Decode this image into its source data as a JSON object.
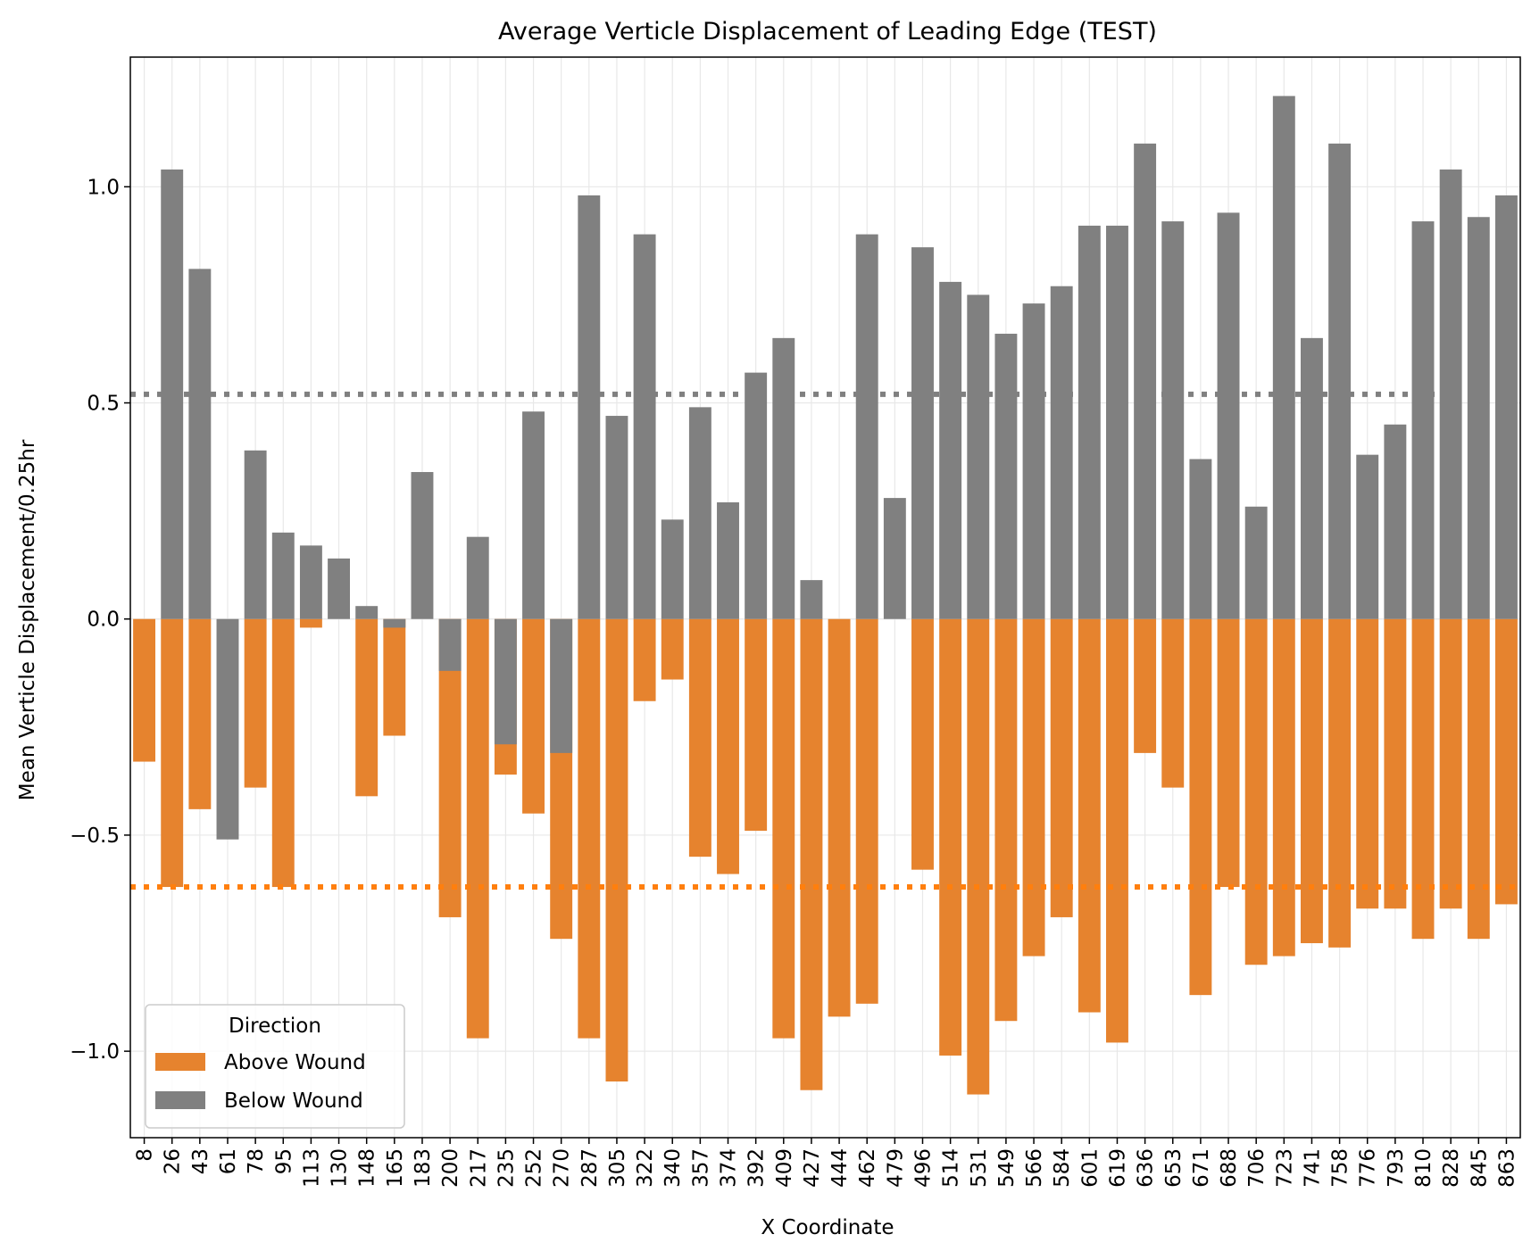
{
  "chart_data": {
    "type": "bar",
    "stacked": "overlay",
    "title": "Average Verticle Displacement of Leading Edge (TEST)",
    "xlabel": "X Coordinate",
    "ylabel": "Mean Verticle Displacement/0.25hr",
    "ylim": [
      -1.2,
      1.3
    ],
    "yticks": [
      -1.0,
      -0.5,
      0.0,
      0.5,
      1.0
    ],
    "ytick_labels": [
      "−1.0",
      "−0.5",
      "0.0",
      "0.5",
      "1.0"
    ],
    "grid": true,
    "legend": {
      "title": "Direction",
      "placement": "lower-left",
      "entries": [
        "Above Wound",
        "Below Wound"
      ]
    },
    "categories": [
      "8",
      "26",
      "43",
      "61",
      "78",
      "95",
      "113",
      "130",
      "148",
      "165",
      "183",
      "200",
      "217",
      "235",
      "252",
      "270",
      "287",
      "305",
      "322",
      "340",
      "357",
      "374",
      "392",
      "409",
      "427",
      "444",
      "462",
      "479",
      "496",
      "514",
      "531",
      "549",
      "566",
      "584",
      "601",
      "619",
      "636",
      "653",
      "671",
      "688",
      "706",
      "723",
      "741",
      "758",
      "776",
      "793",
      "810",
      "828",
      "845",
      "863"
    ],
    "series": [
      {
        "name": "Above Wound",
        "color": "#e6832e",
        "values": [
          -0.33,
          -0.62,
          -0.44,
          0.0,
          -0.39,
          -0.62,
          -0.02,
          0.0,
          -0.41,
          -0.27,
          0.0,
          -0.69,
          -0.97,
          -0.36,
          -0.45,
          -0.74,
          -0.97,
          -1.07,
          -0.19,
          -0.14,
          -0.55,
          -0.59,
          -0.49,
          -0.97,
          -1.09,
          -0.92,
          -0.89,
          0.0,
          -0.58,
          -1.01,
          -1.1,
          -0.93,
          -0.78,
          -0.69,
          -0.91,
          -0.98,
          -0.31,
          -0.39,
          -0.87,
          -0.62,
          -0.8,
          -0.78,
          -0.75,
          -0.76,
          -0.67,
          -0.67,
          -0.74,
          -0.67,
          -0.74,
          -0.66
        ]
      },
      {
        "name": "Below Wound",
        "color": "#808080",
        "values": [
          0.0,
          1.04,
          0.81,
          -0.51,
          0.39,
          0.2,
          0.17,
          0.14,
          0.03,
          -0.02,
          0.34,
          -0.12,
          0.19,
          -0.29,
          0.48,
          -0.31,
          0.98,
          0.47,
          0.89,
          0.23,
          0.49,
          0.27,
          0.57,
          0.65,
          0.09,
          0.0,
          0.89,
          0.28,
          0.86,
          0.78,
          0.75,
          0.66,
          0.73,
          0.77,
          0.91,
          0.91,
          1.1,
          0.92,
          0.37,
          0.94,
          0.26,
          1.21,
          0.65,
          1.1,
          0.38,
          0.45,
          0.92,
          1.04,
          0.93,
          0.98
        ]
      }
    ],
    "reference_lines": [
      {
        "series": "Below Wound",
        "value": 0.52,
        "color": "#808080",
        "style": "dotted"
      },
      {
        "series": "Above Wound",
        "value": -0.62,
        "color": "#ff7f0e",
        "style": "dotted"
      }
    ]
  }
}
